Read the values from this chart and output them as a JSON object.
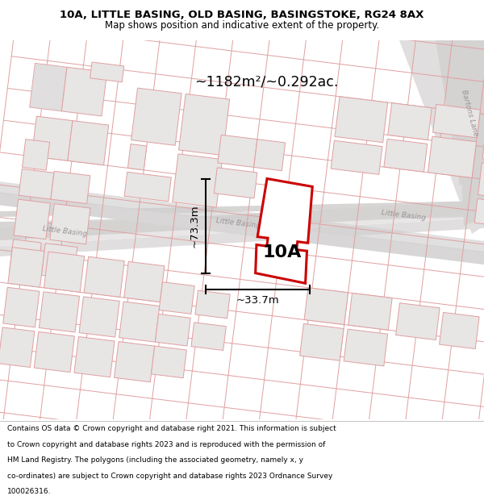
{
  "title_line1": "10A, LITTLE BASING, OLD BASING, BASINGSTOKE, RG24 8AX",
  "title_line2": "Map shows position and indicative extent of the property.",
  "area_text": "~1182m²/~0.292ac.",
  "label_10A": "10A",
  "dim_vertical": "~73.3m",
  "dim_horizontal": "~33.7m",
  "footer_text": "Contains OS data © Crown copyright and database right 2021. This information is subject to Crown copyright and database rights 2023 and is reproduced with the permission of HM Land Registry. The polygons (including the associated geometry, namely x, y co-ordinates) are subject to Crown copyright and database rights 2023 Ordnance Survey 100026316.",
  "map_bg": "#ffffff",
  "plot_line": "#e8a0a0",
  "road_fill": "#e0dede",
  "building_fill": "#e0dede",
  "prop_stroke": "#cc0000",
  "prop_fill": "#ffffff",
  "label_color": "#b8a0a0",
  "footer_bg": "#ffffff",
  "title_color": "#000000"
}
